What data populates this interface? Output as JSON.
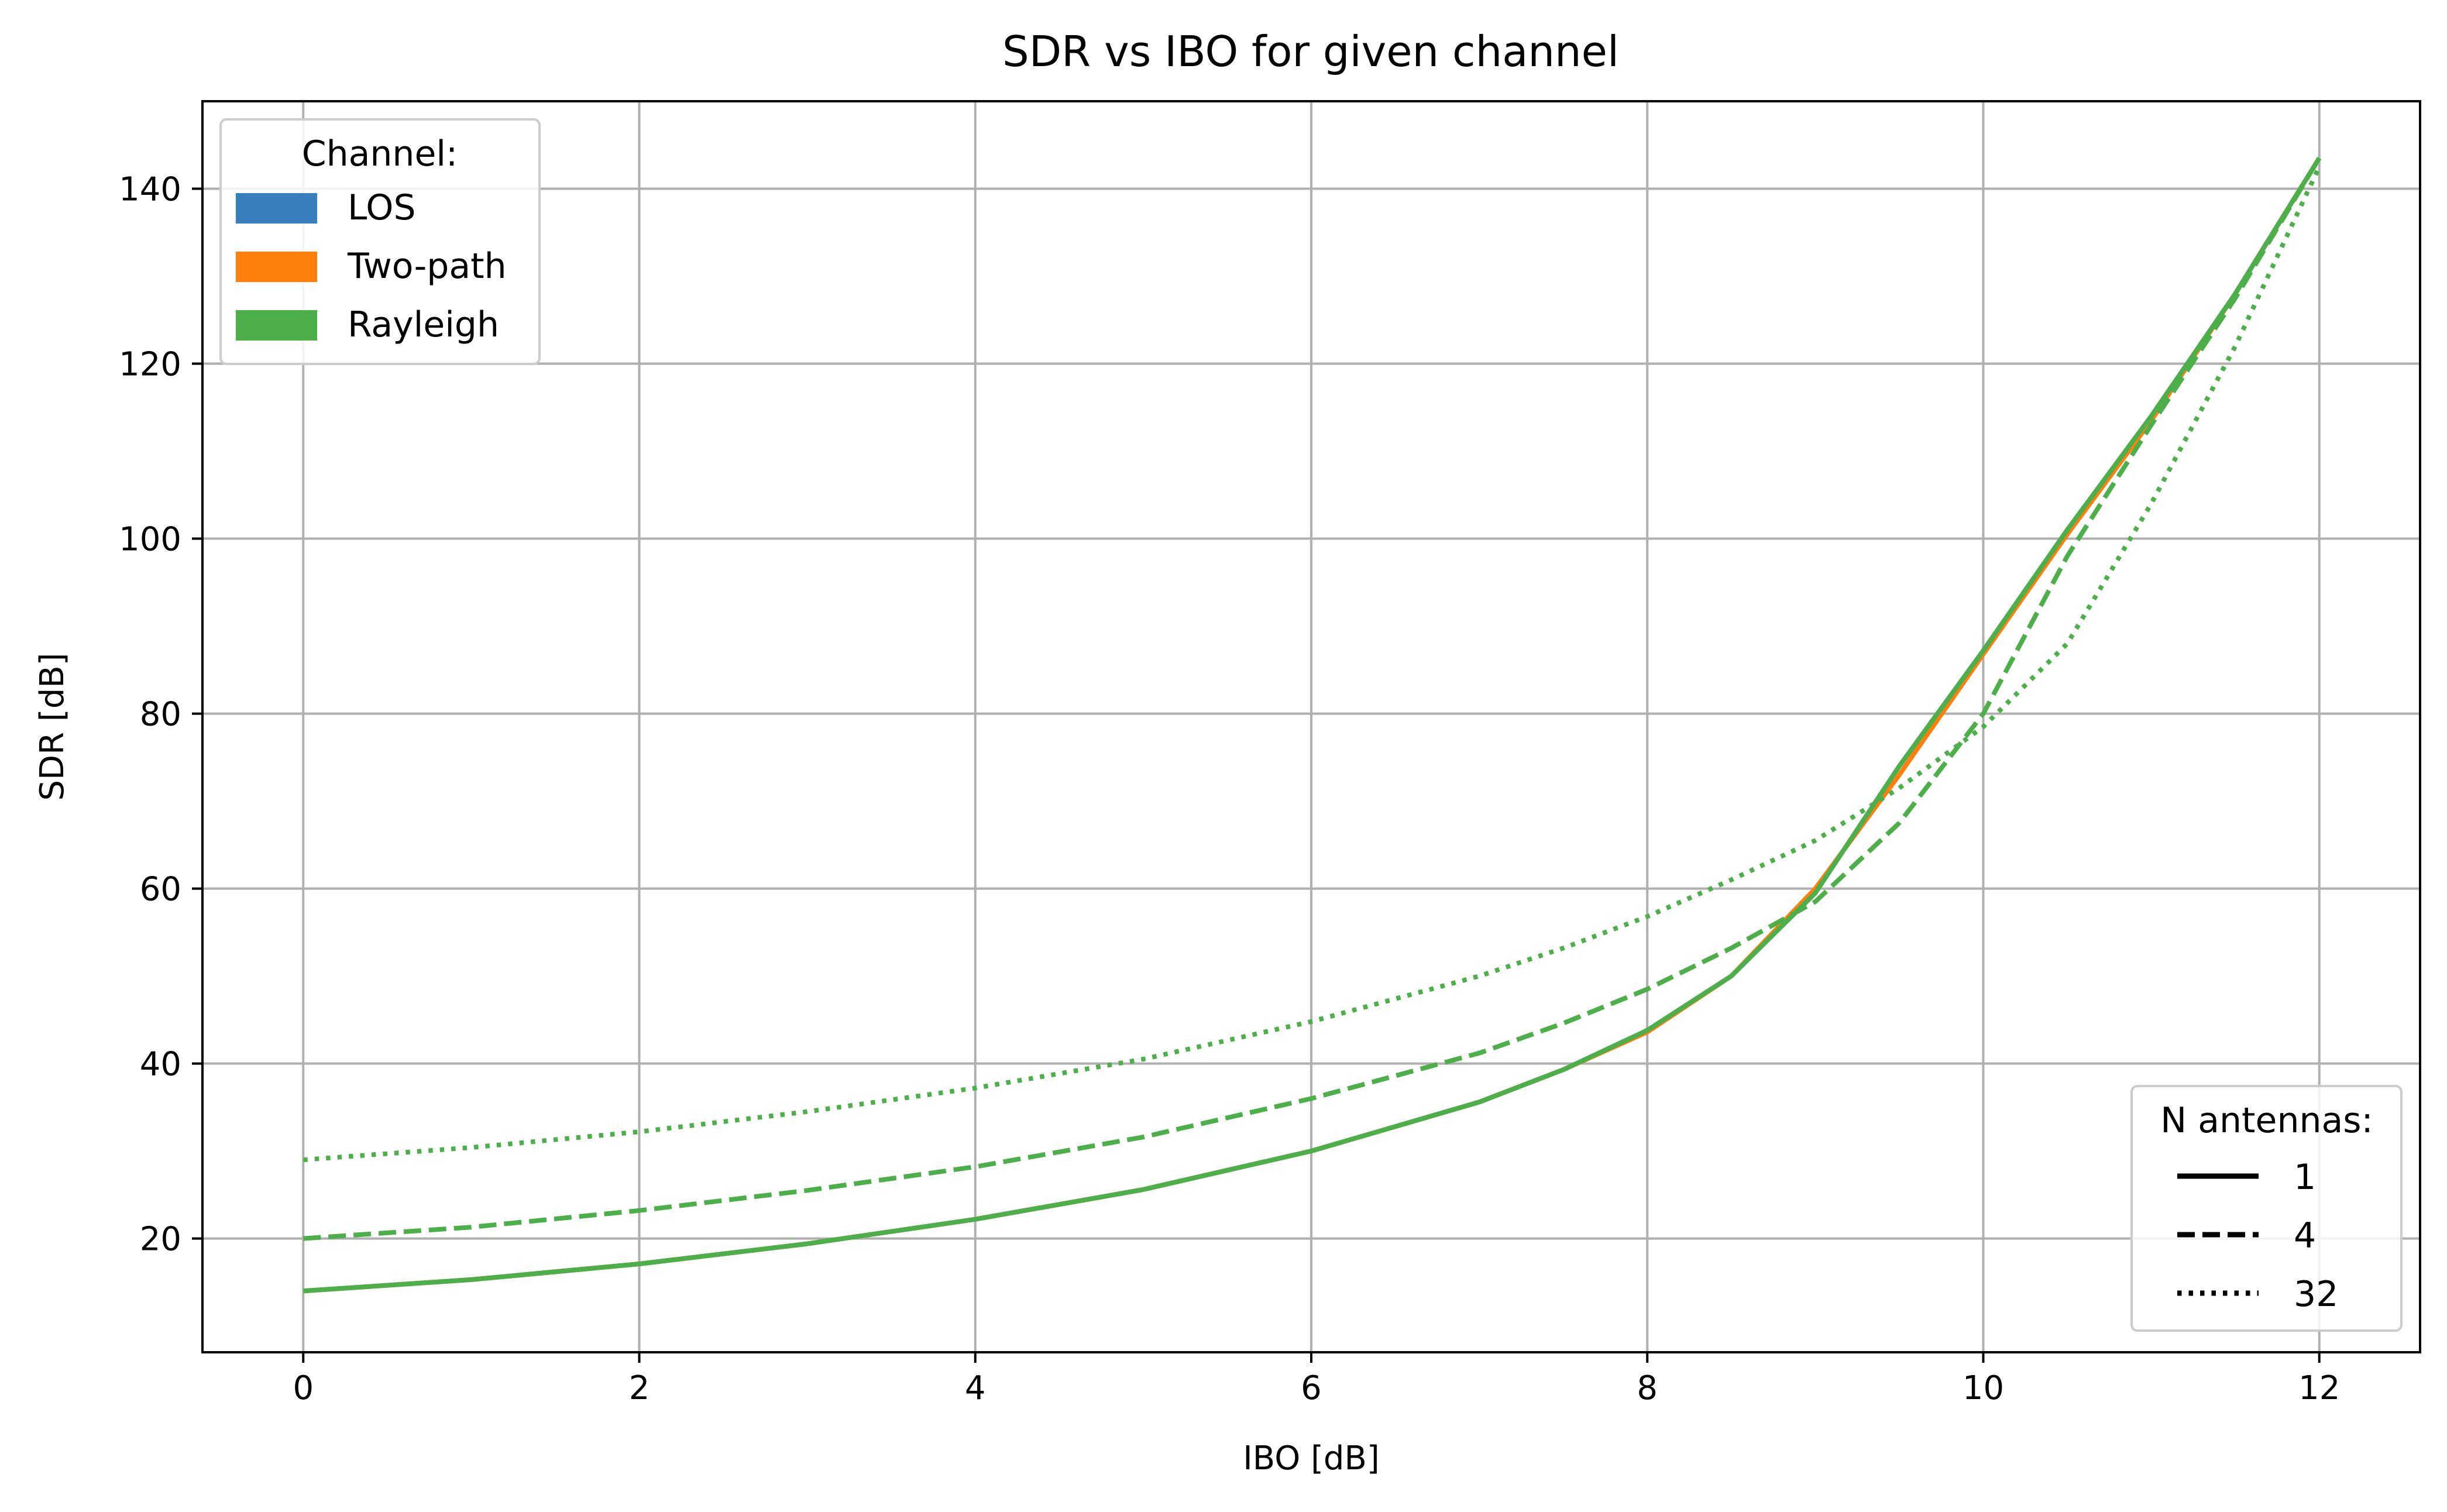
{
  "chart_data": {
    "type": "line",
    "title": "SDR vs IBO for given channel",
    "xlabel": "IBO [dB]",
    "ylabel": "SDR [dB]",
    "xlim": [
      -0.6,
      12.6
    ],
    "ylim": [
      7,
      150
    ],
    "xticks": [
      0,
      2,
      4,
      6,
      8,
      10,
      12
    ],
    "yticks": [
      20,
      40,
      60,
      80,
      100,
      120,
      140
    ],
    "grid": true,
    "legends": [
      {
        "title": "Channel:",
        "placement": "upper left",
        "entries": [
          {
            "label": "LOS",
            "color": "#3a7fbd"
          },
          {
            "label": "Two-path",
            "color": "#ff7f0e"
          },
          {
            "label": "Rayleigh",
            "color": "#4daf4a"
          }
        ]
      },
      {
        "title": "N antennas:",
        "placement": "lower right",
        "entries": [
          {
            "label": "1",
            "dash": "solid"
          },
          {
            "label": "4",
            "dash": "dashed"
          },
          {
            "label": "32",
            "dash": "dotted"
          }
        ]
      }
    ],
    "series": [
      {
        "channel": "LOS",
        "antennas": "1",
        "color": "#3a7fbd",
        "dash": "solid",
        "x": [
          0,
          1,
          2,
          3,
          4,
          5,
          6,
          7,
          7.5,
          8,
          8.5,
          9,
          9.5,
          10,
          10.5,
          11,
          11.5,
          12
        ],
        "y": [
          14,
          15.3,
          17.1,
          19.4,
          22.2,
          25.6,
          30,
          35.6,
          39.3,
          43.8,
          50,
          59.5,
          74,
          87.2,
          101,
          114,
          128,
          143.5
        ]
      },
      {
        "channel": "Two-path",
        "antennas": "1",
        "color": "#ff7f0e",
        "dash": "solid",
        "x": [
          0,
          1,
          2,
          3,
          4,
          5,
          6,
          7,
          7.5,
          8,
          8.5,
          9,
          9.5,
          10,
          10.5,
          11,
          11.5,
          12
        ],
        "y": [
          14,
          15.3,
          17.1,
          19.4,
          22.2,
          25.6,
          30,
          35.6,
          39.3,
          43.6,
          50,
          60,
          73,
          86.8,
          100.5,
          113.5,
          128,
          143.5
        ]
      },
      {
        "channel": "Rayleigh",
        "antennas": "1",
        "color": "#4daf4a",
        "dash": "solid",
        "x": [
          0,
          1,
          2,
          3,
          4,
          5,
          6,
          7,
          7.5,
          8,
          8.5,
          9,
          9.5,
          10,
          10.5,
          11,
          11.5,
          12
        ],
        "y": [
          14,
          15.3,
          17.1,
          19.4,
          22.2,
          25.6,
          30,
          35.6,
          39.3,
          43.8,
          50,
          59.5,
          74,
          87.2,
          101,
          114,
          128,
          143.5
        ]
      },
      {
        "channel": "Rayleigh",
        "antennas": "4",
        "color": "#4daf4a",
        "dash": "dashed",
        "x": [
          0,
          1,
          2,
          3,
          4,
          5,
          6,
          7,
          7.5,
          8,
          8.5,
          9,
          9.5,
          10,
          10.5,
          11,
          11.5,
          12
        ],
        "y": [
          20,
          21.3,
          23.2,
          25.5,
          28.2,
          31.6,
          36,
          41.2,
          44.6,
          48.5,
          53.2,
          58.5,
          67.5,
          80,
          98,
          113,
          127.5,
          143.5
        ]
      },
      {
        "channel": "Rayleigh",
        "antennas": "32",
        "color": "#4daf4a",
        "dash": "dotted",
        "x": [
          0,
          1,
          2,
          3,
          4,
          5,
          6,
          7,
          7.5,
          8,
          8.5,
          9,
          9.5,
          10,
          10.5,
          11,
          11.5,
          12
        ],
        "y": [
          29,
          30.4,
          32.2,
          34.5,
          37.2,
          40.5,
          44.8,
          50,
          53.2,
          56.8,
          61,
          65.5,
          71.5,
          78.5,
          88,
          104,
          122,
          142.5
        ]
      }
    ]
  }
}
